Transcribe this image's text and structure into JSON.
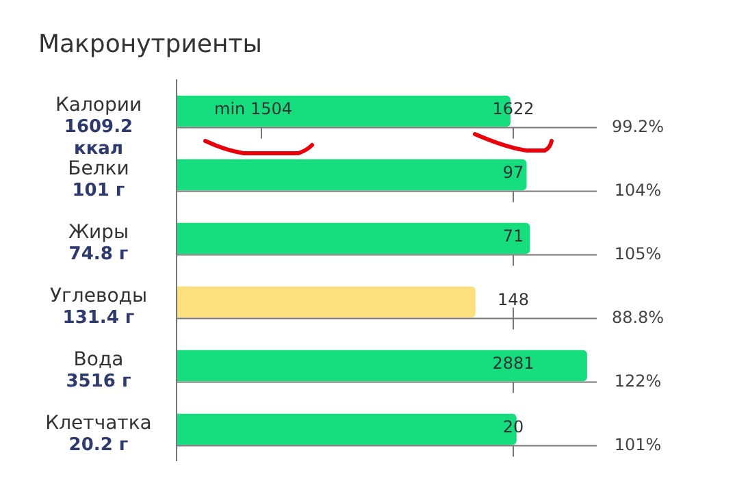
{
  "chart_data": {
    "type": "bar",
    "orientation": "horizontal",
    "title": "Макронутриенты",
    "categories": [
      "Калории\n1609.2\nккал",
      "Белки\n101 г",
      "Жиры\n74.8 г",
      "Углеводы\n131.4 г",
      "Вода\n3516 г",
      "Клетчатка\n20.2 г"
    ],
    "values": [
      99.2,
      104,
      105,
      88.8,
      122,
      101
    ],
    "colors": [
      "#16de7e",
      "#16de7e",
      "#16de7e",
      "#fde07e",
      "#16de7e",
      "#16de7e"
    ],
    "value_labels": [
      "99.2%",
      "104%",
      "105%",
      "88.8%",
      "122%",
      "101%"
    ],
    "xlim": [
      0,
      125
    ],
    "annotations": [
      "min 1504",
      "1622",
      "97",
      "71",
      "148",
      "2881",
      "20"
    ],
    "legend": false
  }
}
